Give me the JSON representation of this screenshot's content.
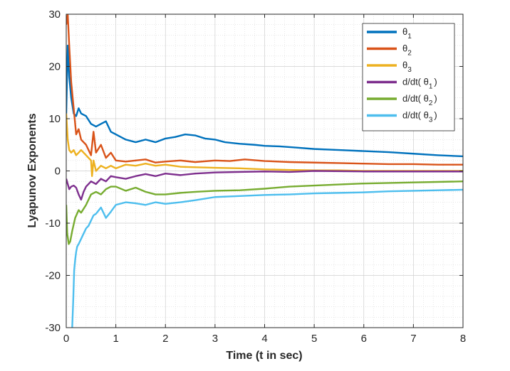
{
  "chart_data": {
    "type": "line",
    "xlabel": "Time (t in sec)",
    "ylabel": "Lyapunov Exponents",
    "xlim": [
      0,
      8
    ],
    "ylim": [
      -30,
      30
    ],
    "xticks": [
      0,
      1,
      2,
      3,
      4,
      5,
      6,
      7,
      8
    ],
    "yticks": [
      30,
      20,
      10,
      0,
      -10,
      -20,
      -30
    ],
    "grid": true,
    "minor_grid": true,
    "legend_position": "top-right",
    "series": [
      {
        "name": "θ1",
        "legend_base": "θ",
        "legend_sub": "1",
        "legend_suffix": "",
        "color": "#0072BD",
        "x": [
          0.0,
          0.03,
          0.06,
          0.1,
          0.15,
          0.2,
          0.25,
          0.3,
          0.4,
          0.5,
          0.6,
          0.7,
          0.8,
          0.9,
          1.0,
          1.2,
          1.4,
          1.6,
          1.8,
          2.0,
          2.2,
          2.4,
          2.6,
          2.8,
          3.0,
          3.2,
          3.5,
          3.8,
          4.0,
          4.3,
          4.6,
          5.0,
          5.5,
          6.0,
          6.5,
          7.0,
          7.5,
          8.0
        ],
        "y": [
          11,
          24,
          18,
          14,
          11,
          10.5,
          12,
          11,
          10.5,
          9,
          8.5,
          9,
          9.5,
          7.5,
          7,
          6,
          5.5,
          6,
          5.5,
          6.2,
          6.5,
          7,
          6.8,
          6.2,
          6,
          5.5,
          5.2,
          5,
          4.8,
          4.7,
          4.5,
          4.2,
          4,
          3.8,
          3.6,
          3.3,
          3.0,
          2.8
        ]
      },
      {
        "name": "θ2",
        "legend_base": "θ",
        "legend_sub": "2",
        "legend_suffix": "",
        "color": "#D95319",
        "x": [
          0.0,
          0.03,
          0.06,
          0.1,
          0.15,
          0.2,
          0.25,
          0.3,
          0.4,
          0.5,
          0.55,
          0.6,
          0.7,
          0.8,
          0.9,
          1.0,
          1.2,
          1.4,
          1.6,
          1.8,
          2.0,
          2.3,
          2.6,
          3.0,
          3.3,
          3.6,
          4.0,
          4.5,
          5.0,
          5.5,
          6.0,
          6.5,
          7.0,
          7.5,
          8.0
        ],
        "y": [
          28,
          30,
          24,
          17,
          12,
          7,
          8,
          6,
          5,
          3,
          7.5,
          3.5,
          5,
          2.5,
          3.5,
          2,
          1.8,
          2,
          2.2,
          1.6,
          1.8,
          2,
          1.7,
          2,
          1.9,
          2.2,
          1.9,
          1.7,
          1.6,
          1.5,
          1.4,
          1.3,
          1.3,
          1.2,
          1.2
        ]
      },
      {
        "name": "θ3",
        "legend_base": "θ",
        "legend_sub": "3",
        "legend_suffix": "",
        "color": "#EDB120",
        "x": [
          0.0,
          0.03,
          0.06,
          0.1,
          0.15,
          0.2,
          0.25,
          0.3,
          0.4,
          0.5,
          0.52,
          0.55,
          0.6,
          0.7,
          0.8,
          0.9,
          1.0,
          1.2,
          1.4,
          1.6,
          1.8,
          2.0,
          2.3,
          2.6,
          3.0,
          3.5,
          4.0,
          4.5,
          5.0,
          5.5,
          6.0,
          7.0,
          8.0
        ],
        "y": [
          11,
          6,
          4,
          3.5,
          4,
          3,
          3.5,
          4,
          3,
          2,
          -1,
          2,
          0,
          1,
          0.5,
          1,
          0.5,
          1.2,
          1,
          1.4,
          1,
          1.2,
          0.8,
          0.7,
          0.6,
          0.5,
          0.3,
          0.2,
          0.1,
          0.1,
          0,
          0,
          0
        ]
      },
      {
        "name": "d/dt(θ1)",
        "legend_base": "d/dt( θ",
        "legend_sub": "1",
        "legend_suffix": ")",
        "color": "#7E2F8E",
        "x": [
          0.0,
          0.03,
          0.06,
          0.1,
          0.15,
          0.2,
          0.25,
          0.3,
          0.35,
          0.4,
          0.5,
          0.6,
          0.7,
          0.8,
          0.9,
          1.0,
          1.2,
          1.4,
          1.6,
          1.8,
          2.0,
          2.3,
          2.6,
          3.0,
          3.5,
          4.0,
          4.5,
          5.0,
          6.0,
          7.0,
          8.0
        ],
        "y": [
          -1.5,
          -2.5,
          -3.5,
          -3,
          -2.8,
          -3.2,
          -4.5,
          -5.5,
          -4,
          -3,
          -2,
          -2.5,
          -1.5,
          -2,
          -1,
          -1.2,
          -1.5,
          -1,
          -0.6,
          -1,
          -0.5,
          -0.8,
          -0.5,
          -0.3,
          -0.2,
          -0.1,
          -0.2,
          0,
          -0.1,
          -0.1,
          -0.1
        ]
      },
      {
        "name": "d/dt(θ2)",
        "legend_base": "d/dt( θ",
        "legend_sub": "2",
        "legend_suffix": ")",
        "color": "#77AC30",
        "x": [
          0.0,
          0.02,
          0.05,
          0.08,
          0.12,
          0.18,
          0.25,
          0.3,
          0.4,
          0.5,
          0.6,
          0.7,
          0.8,
          0.9,
          1.0,
          1.2,
          1.4,
          1.6,
          1.8,
          2.0,
          2.3,
          2.6,
          3.0,
          3.5,
          4.0,
          4.5,
          5.0,
          5.5,
          6.0,
          7.0,
          8.0
        ],
        "y": [
          -6.5,
          -12,
          -14,
          -13.5,
          -11.5,
          -9,
          -7.5,
          -8,
          -6.5,
          -4.5,
          -4,
          -4.5,
          -3.5,
          -3,
          -3,
          -3.8,
          -3.2,
          -4,
          -4.5,
          -4.5,
          -4.2,
          -4,
          -3.8,
          -3.7,
          -3.4,
          -3,
          -2.8,
          -2.6,
          -2.4,
          -2.2,
          -2.0
        ]
      },
      {
        "name": "d/dt(θ3)",
        "legend_base": "d/dt( θ",
        "legend_sub": "3",
        "legend_suffix": ")",
        "color": "#4DBEEE",
        "x": [
          0.12,
          0.14,
          0.16,
          0.18,
          0.2,
          0.22,
          0.25,
          0.3,
          0.35,
          0.4,
          0.45,
          0.5,
          0.55,
          0.6,
          0.7,
          0.8,
          0.9,
          1.0,
          1.2,
          1.4,
          1.6,
          1.8,
          2.0,
          2.3,
          2.6,
          3.0,
          3.5,
          4.0,
          4.5,
          5.0,
          5.5,
          6.0,
          6.5,
          7.0,
          7.5,
          8.0
        ],
        "y": [
          -30,
          -25,
          -19,
          -17,
          -15.5,
          -14.5,
          -14,
          -13,
          -12,
          -11,
          -10.5,
          -9.5,
          -8.5,
          -8.2,
          -7,
          -9,
          -7.8,
          -6.5,
          -6,
          -6.2,
          -6.5,
          -6,
          -6.3,
          -6,
          -5.6,
          -5,
          -4.8,
          -4.6,
          -4.5,
          -4.3,
          -4.2,
          -4.1,
          -3.9,
          -3.8,
          -3.7,
          -3.6
        ]
      }
    ]
  }
}
